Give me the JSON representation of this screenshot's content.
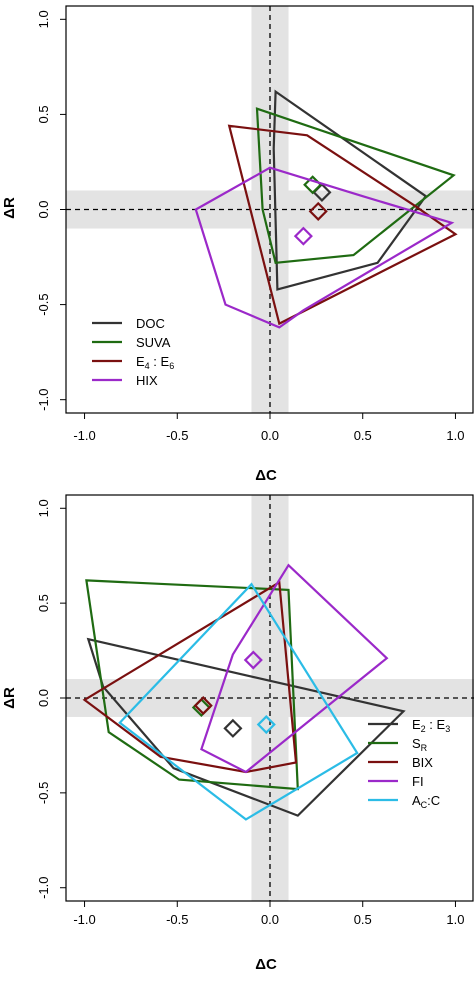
{
  "chart_data": [
    {
      "type": "scatter",
      "xlabel": "ΔC",
      "ylabel": "ΔR",
      "xlim": [
        -1.1,
        1.1
      ],
      "ylim": [
        -1.07,
        1.07
      ],
      "xticks": [
        -1.0,
        -0.5,
        0.0,
        0.5,
        1.0
      ],
      "yticks": [
        -1.0,
        -0.5,
        0.0,
        0.5,
        1.0
      ],
      "xtick_labels": [
        "-1.0",
        "-0.5",
        "0.0",
        "0.5",
        "1.0"
      ],
      "ytick_labels": [
        "-1.0",
        "-0.5",
        "0.0",
        "0.5",
        "1.0"
      ],
      "reference_lines": {
        "x": 0,
        "y": 0
      },
      "shaded_bands": {
        "x": [
          -0.1,
          0.1
        ],
        "y": [
          -0.1,
          0.1
        ]
      },
      "legend_position": "bottom-left",
      "series": [
        {
          "name": "DOC",
          "main": "DOC",
          "sub1": "",
          "mid": "",
          "sub2": "",
          "color": "#333333",
          "hull": [
            [
              0.03,
              0.62
            ],
            [
              0.84,
              0.07
            ],
            [
              0.58,
              -0.28
            ],
            [
              0.04,
              -0.42
            ],
            [
              0.02,
              0.32
            ]
          ],
          "centroid": [
            0.28,
            0.09
          ]
        },
        {
          "name": "SUVA",
          "main": "SUVA",
          "sub1": "",
          "mid": "",
          "sub2": "",
          "color": "#1f6b12",
          "hull": [
            [
              -0.07,
              0.53
            ],
            [
              0.99,
              0.18
            ],
            [
              0.45,
              -0.24
            ],
            [
              0.03,
              -0.28
            ],
            [
              -0.04,
              0.0
            ]
          ],
          "centroid": [
            0.23,
            0.13
          ]
        },
        {
          "name": "E4:E6",
          "main": "E",
          "sub1": "4",
          "mid": " : E",
          "sub2": "6",
          "color": "#7a1010",
          "hull": [
            [
              -0.22,
              0.44
            ],
            [
              0.2,
              0.39
            ],
            [
              0.78,
              0.02
            ],
            [
              1.0,
              -0.13
            ],
            [
              0.05,
              -0.6
            ]
          ],
          "centroid": [
            0.26,
            -0.01
          ]
        },
        {
          "name": "HIX",
          "main": "HIX",
          "sub1": "",
          "mid": "",
          "sub2": "",
          "color": "#9b29c9",
          "hull": [
            [
              -0.4,
              0.0
            ],
            [
              0.0,
              0.22
            ],
            [
              0.5,
              0.07
            ],
            [
              0.98,
              -0.07
            ],
            [
              0.18,
              -0.53
            ],
            [
              0.05,
              -0.62
            ],
            [
              -0.24,
              -0.5
            ]
          ],
          "centroid": [
            0.18,
            -0.14
          ]
        }
      ]
    },
    {
      "type": "scatter",
      "xlabel": "ΔC",
      "ylabel": "ΔR",
      "xlim": [
        -1.1,
        1.1
      ],
      "ylim": [
        -1.07,
        1.07
      ],
      "xticks": [
        -1.0,
        -0.5,
        0.0,
        0.5,
        1.0
      ],
      "yticks": [
        -1.0,
        -0.5,
        0.0,
        0.5,
        1.0
      ],
      "xtick_labels": [
        "-1.0",
        "-0.5",
        "0.0",
        "0.5",
        "1.0"
      ],
      "ytick_labels": [
        "-1.0",
        "-0.5",
        "0.0",
        "0.5",
        "1.0"
      ],
      "reference_lines": {
        "x": 0,
        "y": 0
      },
      "shaded_bands": {
        "x": [
          -0.1,
          0.1
        ],
        "y": [
          -0.1,
          0.1
        ]
      },
      "legend_position": "bottom-right",
      "series": [
        {
          "name": "E2:E3",
          "main": "E",
          "sub1": "2",
          "mid": " : E",
          "sub2": "3",
          "color": "#333333",
          "hull": [
            [
              -0.98,
              0.31
            ],
            [
              0.72,
              -0.07
            ],
            [
              0.15,
              -0.62
            ],
            [
              -0.52,
              -0.37
            ],
            [
              -0.9,
              0.06
            ]
          ],
          "centroid": [
            -0.2,
            -0.16
          ]
        },
        {
          "name": "SR",
          "main": "S",
          "sub1": "R",
          "mid": "",
          "sub2": "",
          "color": "#1f6b12",
          "hull": [
            [
              -0.99,
              0.62
            ],
            [
              0.1,
              0.57
            ],
            [
              0.15,
              -0.48
            ],
            [
              -0.49,
              -0.43
            ],
            [
              -0.87,
              -0.18
            ]
          ],
          "centroid": [
            -0.37,
            -0.05
          ]
        },
        {
          "name": "BIX",
          "main": "BIX",
          "sub1": "",
          "mid": "",
          "sub2": "",
          "color": "#7a1010",
          "hull": [
            [
              -1.0,
              -0.01
            ],
            [
              0.05,
              0.61
            ],
            [
              0.14,
              -0.34
            ],
            [
              -0.13,
              -0.39
            ],
            [
              -0.59,
              -0.31
            ]
          ],
          "centroid": [
            -0.36,
            -0.04
          ]
        },
        {
          "name": "FI",
          "main": "FI",
          "sub1": "",
          "mid": "",
          "sub2": "",
          "color": "#9b29c9",
          "hull": [
            [
              -0.2,
              0.23
            ],
            [
              0.1,
              0.7
            ],
            [
              0.63,
              0.21
            ],
            [
              -0.13,
              -0.39
            ],
            [
              -0.37,
              -0.27
            ]
          ],
          "centroid": [
            -0.09,
            0.2
          ]
        },
        {
          "name": "AC:C",
          "main": "A",
          "sub1": "C",
          "mid": ":C",
          "sub2": "",
          "color": "#2bbce6",
          "hull": [
            [
              -0.81,
              -0.13
            ],
            [
              -0.1,
              0.6
            ],
            [
              0.47,
              -0.29
            ],
            [
              -0.13,
              -0.64
            ]
          ],
          "centroid": [
            -0.02,
            -0.14
          ]
        }
      ]
    }
  ]
}
